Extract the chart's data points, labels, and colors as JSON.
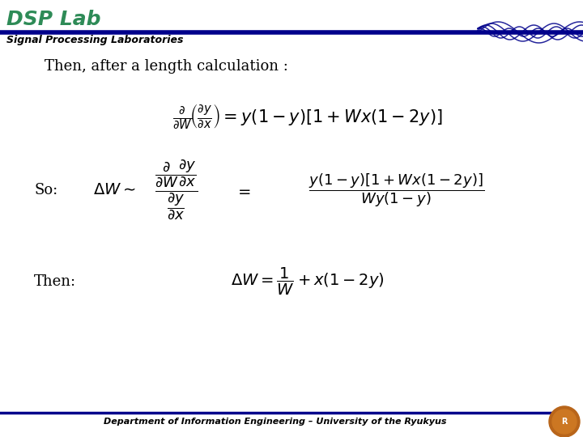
{
  "title": "DSP Lab",
  "subtitle": "Signal Processing Laboratories",
  "header_line_color": "#00008B",
  "title_color": "#2E8B57",
  "subtitle_color": "#000000",
  "footer_text": "Department of Information Engineering – University of the Ryukyus",
  "footer_line_color": "#00008B",
  "bg_color": "#ffffff",
  "text_intro": "Then, after a length calculation :",
  "eq1": "\\frac{\\partial}{\\partial W}\\!\\left(\\frac{\\partial y}{\\partial x}\\right) = y(1-y)[1+Wx(1-2y)]",
  "label_so": "So:",
  "eq2_frac": "\\dfrac{\\dfrac{\\partial}{\\partial W}\\dfrac{\\partial y}{\\partial x}}{\\dfrac{\\partial y}{\\partial x}}",
  "eq2_right": "\\dfrac{y(1-y)[1+Wx(1-2y)]}{Wy(1-y)}",
  "label_then": "Then:",
  "eq3": "\\Delta W = \\dfrac{1}{W} + x(1-2y)"
}
